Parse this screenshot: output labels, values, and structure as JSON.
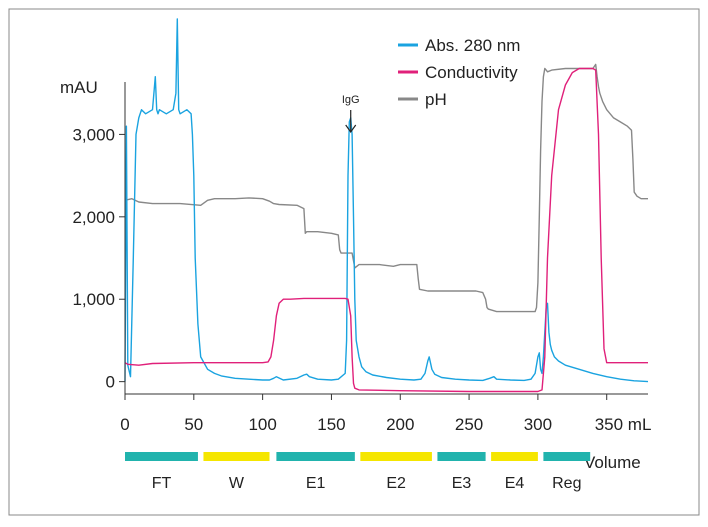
{
  "chart_data": {
    "type": "line",
    "ylabel": "mAU",
    "xlabel": "Volume",
    "x_unit": "mL",
    "xlim": [
      0,
      380
    ],
    "ylim": [
      -150,
      4000
    ],
    "x_ticks": [
      0,
      50,
      100,
      150,
      200,
      250,
      300,
      350
    ],
    "x_tick_labels": [
      "0",
      "50",
      "100",
      "150",
      "200",
      "250",
      "300",
      "350 mL"
    ],
    "y_ticks": [
      0,
      1000,
      2000,
      3000
    ],
    "y_tick_labels": [
      "0",
      "1,000",
      "2,000",
      "3,000"
    ],
    "grid": false,
    "legend_position": "top-right",
    "annotations": [
      {
        "text": "IgG",
        "x": 164,
        "y": 3250
      }
    ],
    "series": [
      {
        "name": "Abs. 280 nm",
        "color": "#1aa3e0",
        "x": [
          0,
          1,
          2,
          4,
          6,
          8,
          10,
          12,
          15,
          20,
          22,
          23,
          24,
          25,
          30,
          35,
          37,
          38,
          39,
          40,
          45,
          48,
          49,
          50,
          51,
          53,
          55,
          60,
          65,
          70,
          80,
          90,
          100,
          105,
          108,
          110,
          115,
          125,
          130,
          132,
          134,
          140,
          150,
          155,
          160,
          161,
          162,
          163,
          164,
          165,
          166,
          167,
          168,
          170,
          172,
          175,
          180,
          190,
          200,
          210,
          215,
          218,
          220,
          221,
          223,
          225,
          230,
          240,
          250,
          260,
          265,
          268,
          270,
          280,
          290,
          295,
          298,
          300,
          301,
          302,
          303,
          304,
          305,
          306,
          307,
          308,
          309,
          310,
          312,
          315,
          320,
          330,
          340,
          350,
          360,
          370,
          380
        ],
        "y": [
          0,
          3100,
          200,
          60,
          1500,
          3000,
          3200,
          3300,
          3250,
          3300,
          3700,
          3300,
          3250,
          3300,
          3250,
          3300,
          3500,
          4400,
          3300,
          3250,
          3300,
          3250,
          3000,
          2500,
          1500,
          700,
          300,
          150,
          100,
          70,
          40,
          30,
          20,
          20,
          40,
          60,
          20,
          40,
          80,
          90,
          60,
          30,
          20,
          30,
          100,
          500,
          2500,
          3150,
          3200,
          3000,
          2000,
          1000,
          500,
          300,
          180,
          120,
          80,
          50,
          30,
          20,
          30,
          100,
          250,
          300,
          150,
          90,
          50,
          30,
          20,
          15,
          40,
          60,
          30,
          20,
          15,
          30,
          100,
          300,
          350,
          150,
          100,
          300,
          600,
          900,
          950,
          600,
          450,
          380,
          300,
          250,
          200,
          150,
          100,
          60,
          30,
          10,
          0
        ]
      },
      {
        "name": "Conductivity",
        "color": "#e0207a",
        "x": [
          0,
          2,
          10,
          20,
          50,
          100,
          104,
          106,
          108,
          110,
          112,
          115,
          118,
          120,
          130,
          140,
          150,
          160,
          162,
          164,
          165,
          166,
          167,
          170,
          200,
          250,
          290,
          300,
          303,
          305,
          307,
          310,
          315,
          320,
          325,
          330,
          335,
          340,
          342,
          344,
          346,
          348,
          350,
          360,
          380
        ],
        "y": [
          230,
          210,
          200,
          220,
          230,
          230,
          240,
          300,
          500,
          800,
          950,
          1000,
          1000,
          1000,
          1010,
          1010,
          1010,
          1010,
          1000,
          800,
          300,
          -20,
          -80,
          -100,
          -110,
          -120,
          -120,
          -120,
          -100,
          300,
          1500,
          2500,
          3300,
          3600,
          3750,
          3800,
          3800,
          3800,
          3780,
          3000,
          1500,
          400,
          230,
          230,
          230
        ]
      },
      {
        "name": "pH",
        "color": "#888888",
        "x": [
          0,
          5,
          10,
          20,
          40,
          55,
          60,
          65,
          70,
          80,
          90,
          100,
          105,
          108,
          112,
          125,
          130,
          131,
          132,
          140,
          150,
          155,
          156,
          157,
          160,
          165,
          167,
          170,
          175,
          185,
          195,
          200,
          205,
          212,
          213,
          214,
          220,
          230,
          240,
          250,
          255,
          260,
          262,
          263,
          264,
          270,
          280,
          290,
          295,
          298,
          299,
          300,
          301,
          302,
          303,
          304,
          305,
          306,
          307,
          310,
          320,
          330,
          340,
          342,
          343,
          344,
          345,
          347,
          350,
          355,
          360,
          365,
          368,
          369,
          370,
          372,
          375,
          380
        ],
        "y": [
          2200,
          2220,
          2180,
          2160,
          2160,
          2140,
          2200,
          2220,
          2220,
          2220,
          2230,
          2220,
          2190,
          2160,
          2150,
          2140,
          2100,
          1800,
          1820,
          1820,
          1800,
          1780,
          1600,
          1560,
          1560,
          1560,
          1380,
          1420,
          1420,
          1420,
          1400,
          1420,
          1420,
          1420,
          1250,
          1120,
          1100,
          1100,
          1100,
          1100,
          1100,
          1080,
          1000,
          900,
          880,
          850,
          850,
          850,
          850,
          850,
          900,
          1200,
          2000,
          2800,
          3400,
          3700,
          3800,
          3780,
          3760,
          3780,
          3800,
          3800,
          3800,
          3850,
          3700,
          3580,
          3500,
          3400,
          3300,
          3200,
          3150,
          3100,
          3050,
          2700,
          2300,
          2250,
          2220,
          2220
        ]
      }
    ],
    "fractions": [
      {
        "label": "FT",
        "x0": 0,
        "x1": 53,
        "color": "#21b3ad"
      },
      {
        "label": "W",
        "x0": 57,
        "x1": 105,
        "color": "#f5e600"
      },
      {
        "label": "E1",
        "x0": 110,
        "x1": 167,
        "color": "#21b3ad"
      },
      {
        "label": "E2",
        "x0": 171,
        "x1": 223,
        "color": "#f5e600"
      },
      {
        "label": "E3",
        "x0": 227,
        "x1": 262,
        "color": "#21b3ad"
      },
      {
        "label": "E4",
        "x0": 266,
        "x1": 300,
        "color": "#f5e600"
      },
      {
        "label": "Reg",
        "x0": 304,
        "x1": 338,
        "color": "#21b3ad"
      }
    ]
  }
}
